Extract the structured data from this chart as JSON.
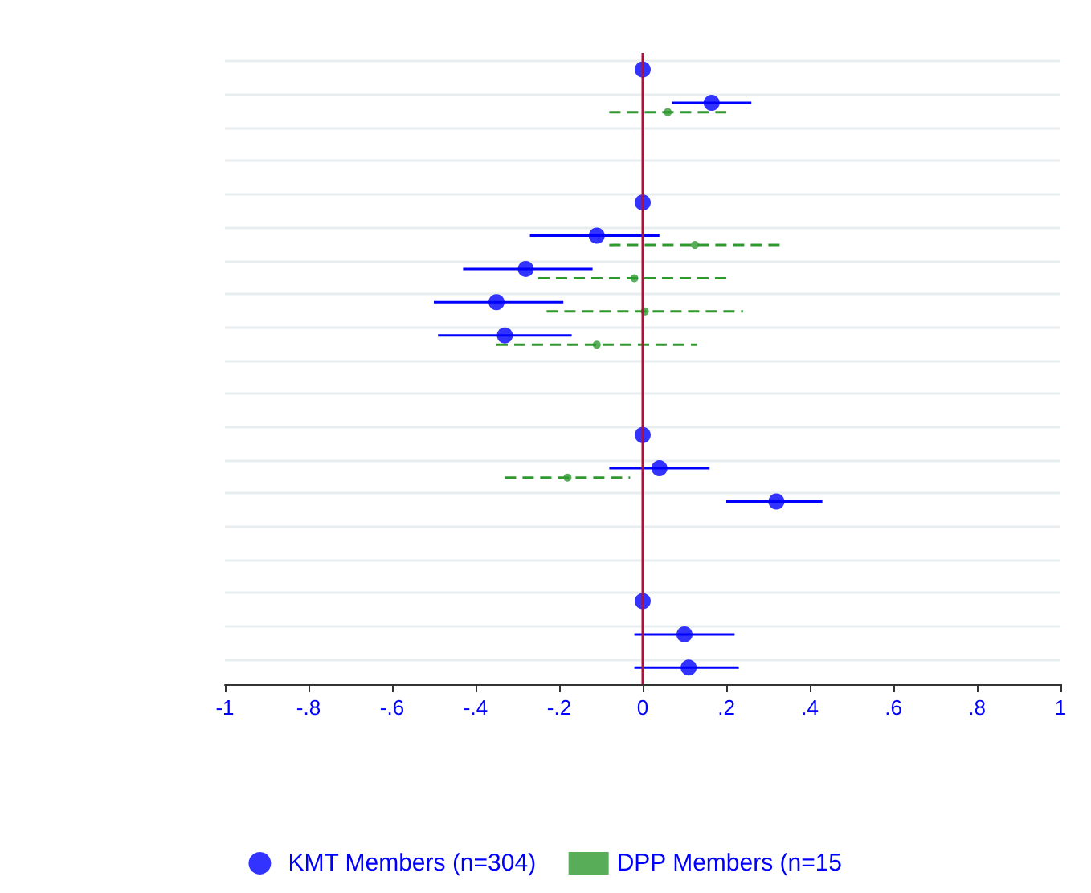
{
  "chart_data": {
    "type": "scatter",
    "orientation": "horizontal",
    "categories": [
      null,
      null,
      null,
      null,
      null,
      null,
      null,
      null,
      null,
      null,
      null,
      null,
      null,
      null,
      null,
      null,
      null,
      null,
      null
    ],
    "xlim": [
      -1,
      1
    ],
    "xticks": [
      {
        "value": -1,
        "label": "-1"
      },
      {
        "value": -0.8,
        "label": "-.8"
      },
      {
        "value": -0.6,
        "label": "-.6"
      },
      {
        "value": -0.4,
        "label": "-.4"
      },
      {
        "value": -0.2,
        "label": "-.2"
      },
      {
        "value": 0,
        "label": "0"
      },
      {
        "value": 0.2,
        "label": ".2"
      },
      {
        "value": 0.4,
        "label": ".4"
      },
      {
        "value": 0.6,
        "label": ".6"
      },
      {
        "value": 0.8,
        "label": ".8"
      },
      {
        "value": 1,
        "label": "1"
      }
    ],
    "series": [
      {
        "name": "KMT Members (n=304)",
        "color": "#0000ff",
        "marker": "circle",
        "line_style": "solid",
        "values": [
          0,
          0.165,
          null,
          null,
          0,
          -0.11,
          -0.28,
          -0.35,
          -0.33,
          null,
          null,
          0,
          0.04,
          0.32,
          null,
          null,
          0,
          0.1,
          0.11
        ],
        "errors": [
          null,
          [
            0.07,
            0.26
          ],
          null,
          null,
          null,
          [
            -0.27,
            0.04
          ],
          [
            -0.43,
            -0.12
          ],
          [
            -0.5,
            -0.19
          ],
          [
            -0.49,
            -0.17
          ],
          null,
          null,
          null,
          [
            -0.08,
            0.16
          ],
          [
            0.2,
            0.43
          ],
          null,
          null,
          null,
          [
            -0.02,
            0.22
          ],
          [
            -0.02,
            0.23
          ]
        ]
      },
      {
        "name": "DPP Members (n=15",
        "color": "#2e9a2e",
        "marker": "circle",
        "line_style": "dashed",
        "values": [
          null,
          0.06,
          null,
          null,
          null,
          0.125,
          -0.02,
          0.005,
          -0.11,
          null,
          null,
          null,
          -0.18,
          null,
          null,
          null,
          null,
          null,
          null
        ],
        "errors": [
          null,
          [
            -0.08,
            0.2
          ],
          null,
          null,
          null,
          [
            -0.08,
            0.33
          ],
          [
            -0.25,
            0.21
          ],
          [
            -0.23,
            0.24
          ],
          [
            -0.35,
            0.13
          ],
          null,
          null,
          null,
          [
            -0.33,
            -0.03
          ],
          null,
          null,
          null,
          null,
          null,
          null
        ]
      }
    ],
    "ref_lines": [
      {
        "axis": "x",
        "value": 0,
        "color": "#b0103a"
      }
    ],
    "grid": "y",
    "legend": "bottom"
  }
}
